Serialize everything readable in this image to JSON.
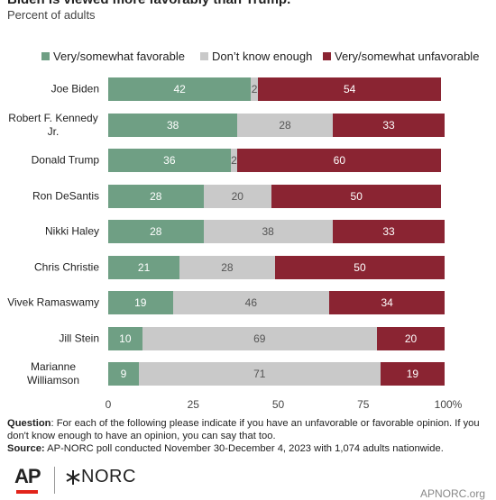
{
  "chart_data": {
    "type": "stacked-bar-horizontal",
    "title": "Biden is viewed more favorably than Trump.",
    "subtitle": "Percent of adults",
    "categories": [
      "Joe Biden",
      "Robert F. Kennedy Jr.",
      "Donald Trump",
      "Ron DeSantis",
      "Nikki Haley",
      "Chris Christie",
      "Vivek Ramaswamy",
      "Jill Stein",
      "Marianne Williamson"
    ],
    "series": [
      {
        "name": "Very/somewhat favorable",
        "color": "#6f9f84",
        "label_color": "#ffffff",
        "values": [
          42,
          38,
          36,
          28,
          28,
          21,
          19,
          10,
          9
        ]
      },
      {
        "name": "Don’t know enough",
        "color": "#c9c9c9",
        "label_color": "#555555",
        "values": [
          2,
          28,
          2,
          20,
          38,
          28,
          46,
          69,
          71
        ]
      },
      {
        "name": "Very/somewhat unfavorable",
        "color": "#8a2432",
        "label_color": "#ffffff",
        "values": [
          54,
          33,
          60,
          50,
          33,
          50,
          34,
          20,
          19
        ]
      }
    ],
    "xlim": [
      0,
      100
    ],
    "xticks": [
      0,
      25,
      50,
      75,
      {
        "value": 100,
        "label": "100%"
      }
    ],
    "question_label": "Question",
    "question": ": For each of the following please indicate if you have an unfavorable or favorable opinion. If you don't know enough to have an opinion, you can say that too.",
    "source_label": "Source:",
    "source": " AP-NORC poll conducted November 30-December 4, 2023 with 1,074 adults nationwide.",
    "logos": [
      "AP",
      "NORC"
    ],
    "website": "APNORC.org"
  }
}
